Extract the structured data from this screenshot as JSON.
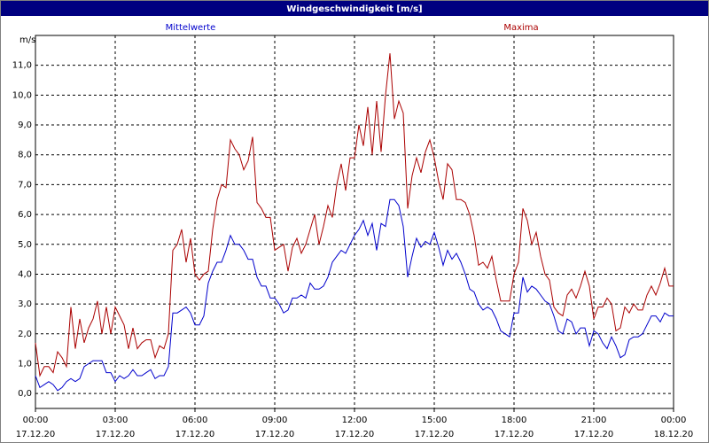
{
  "chart_data": {
    "type": "line",
    "title": "Windgeschwindigkeit [m/s]",
    "y_unit": "m/s",
    "x": [
      0,
      10,
      20,
      30,
      40,
      50,
      60,
      70,
      80,
      90,
      100,
      110,
      120,
      130,
      140,
      150,
      160,
      170,
      180,
      190,
      200,
      210,
      220,
      230,
      240,
      250,
      260,
      270,
      280,
      290,
      300,
      310,
      320,
      330,
      340,
      350,
      360,
      370,
      380,
      390,
      400,
      410,
      420,
      430,
      440,
      450,
      460,
      470,
      480,
      490,
      500,
      510,
      520,
      530,
      540,
      550,
      560,
      570,
      580,
      590,
      600,
      610,
      620,
      630,
      640,
      650,
      660,
      670,
      680,
      690,
      700,
      710,
      720,
      730,
      740,
      750,
      760,
      770,
      780,
      790,
      800,
      810,
      820,
      830,
      840,
      850,
      860,
      870,
      880,
      890,
      900,
      910,
      920,
      930,
      940,
      950,
      960,
      970,
      980,
      990,
      1000,
      1010,
      1020,
      1030,
      1040,
      1050,
      1060,
      1070,
      1080,
      1090,
      1100,
      1110,
      1120,
      1130,
      1140,
      1150,
      1160,
      1170,
      1180,
      1190,
      1200,
      1210,
      1220,
      1230,
      1240,
      1250,
      1260,
      1270,
      1280,
      1290,
      1300,
      1310,
      1320,
      1330,
      1340,
      1350,
      1360,
      1370,
      1380,
      1390,
      1400,
      1410,
      1420,
      1430,
      1440
    ],
    "series": [
      {
        "name": "Mittelwerte",
        "color": "#0000cc",
        "values": [
          0.6,
          0.2,
          0.3,
          0.4,
          0.3,
          0.1,
          0.2,
          0.4,
          0.5,
          0.4,
          0.5,
          0.9,
          1.0,
          1.1,
          1.1,
          1.1,
          0.7,
          0.7,
          0.4,
          0.6,
          0.5,
          0.6,
          0.8,
          0.6,
          0.6,
          0.7,
          0.8,
          0.5,
          0.6,
          0.6,
          0.9,
          2.7,
          2.7,
          2.8,
          2.9,
          2.7,
          2.3,
          2.3,
          2.6,
          3.7,
          4.1,
          4.4,
          4.4,
          4.8,
          5.3,
          5.0,
          5.0,
          4.8,
          4.5,
          4.5,
          3.9,
          3.6,
          3.6,
          3.2,
          3.2,
          3.0,
          2.7,
          2.8,
          3.2,
          3.2,
          3.3,
          3.2,
          3.7,
          3.5,
          3.5,
          3.6,
          3.9,
          4.4,
          4.6,
          4.8,
          4.7,
          5.0,
          5.3,
          5.5,
          5.8,
          5.3,
          5.7,
          4.8,
          5.7,
          5.6,
          6.5,
          6.5,
          6.3,
          5.6,
          3.9,
          4.6,
          5.2,
          4.9,
          5.1,
          5.0,
          5.4,
          4.9,
          4.3,
          4.8,
          4.5,
          4.7,
          4.4,
          4.0,
          3.5,
          3.4,
          3.0,
          2.8,
          2.9,
          2.8,
          2.5,
          2.1,
          2.0,
          1.9,
          2.7,
          2.7,
          3.9,
          3.4,
          3.6,
          3.5,
          3.3,
          3.1,
          3.0,
          2.6,
          2.1,
          2.0,
          2.5,
          2.4,
          2.0,
          2.2,
          2.2,
          1.6,
          2.1,
          2.0,
          1.7,
          1.5,
          1.9,
          1.6,
          1.2,
          1.3,
          1.8,
          1.9,
          1.9,
          2.0,
          2.3,
          2.6,
          2.6,
          2.4,
          2.7,
          2.6,
          2.6
        ]
      },
      {
        "name": "Maxima",
        "color": "#aa0000",
        "values": [
          1.7,
          0.6,
          0.9,
          0.9,
          0.7,
          1.4,
          1.2,
          0.9,
          2.9,
          1.5,
          2.5,
          1.7,
          2.2,
          2.5,
          3.1,
          2.0,
          2.9,
          2.0,
          2.9,
          2.6,
          2.3,
          1.5,
          2.2,
          1.5,
          1.7,
          1.8,
          1.8,
          1.2,
          1.6,
          1.5,
          2.0,
          4.8,
          5.0,
          5.5,
          4.4,
          5.2,
          4.0,
          3.8,
          4.0,
          4.1,
          5.5,
          6.5,
          7.0,
          6.9,
          8.5,
          8.2,
          8.0,
          7.5,
          7.8,
          8.6,
          6.4,
          6.2,
          5.9,
          5.9,
          4.8,
          4.9,
          5.0,
          4.1,
          4.9,
          5.2,
          4.7,
          5.0,
          5.5,
          6.0,
          5.0,
          5.6,
          6.3,
          5.9,
          7.0,
          7.7,
          6.8,
          7.9,
          7.9,
          9.0,
          8.3,
          9.6,
          8.0,
          9.8,
          8.1,
          10.0,
          11.4,
          9.2,
          9.8,
          9.4,
          6.2,
          7.3,
          7.9,
          7.4,
          8.1,
          8.5,
          7.9,
          7.1,
          6.5,
          7.7,
          7.5,
          6.5,
          6.5,
          6.4,
          6.0,
          5.3,
          4.3,
          4.4,
          4.2,
          4.6,
          3.8,
          3.1,
          3.1,
          3.1,
          4.0,
          4.4,
          6.2,
          5.8,
          5.0,
          5.4,
          4.6,
          4.0,
          3.8,
          2.9,
          2.7,
          2.6,
          3.3,
          3.5,
          3.2,
          3.6,
          4.1,
          3.6,
          2.5,
          2.9,
          2.9,
          3.2,
          3.0,
          2.1,
          2.2,
          2.9,
          2.7,
          3.0,
          2.8,
          2.8,
          3.3,
          3.6,
          3.3,
          3.7,
          4.2,
          3.6,
          3.6
        ]
      }
    ],
    "xlim": [
      0,
      1440
    ],
    "xticks": [
      {
        "value": 0,
        "label": "00:00"
      },
      {
        "value": 180,
        "label": "03:00"
      },
      {
        "value": 360,
        "label": "06:00"
      },
      {
        "value": 540,
        "label": "09:00"
      },
      {
        "value": 720,
        "label": "12:00"
      },
      {
        "value": 900,
        "label": "15:00"
      },
      {
        "value": 1080,
        "label": "18:00"
      },
      {
        "value": 1260,
        "label": "21:00"
      },
      {
        "value": 1440,
        "label": "00:00"
      }
    ],
    "xtick_dates": [
      "17.12.20",
      "17.12.20",
      "17.12.20",
      "17.12.20",
      "17.12.20",
      "17.12.20",
      "17.12.20",
      "17.12.20",
      "18.12.20"
    ],
    "ylim": [
      -0.5,
      12
    ],
    "yticks": [
      {
        "value": 0,
        "label": "0,0"
      },
      {
        "value": 1,
        "label": "1,0"
      },
      {
        "value": 2,
        "label": "2,0"
      },
      {
        "value": 3,
        "label": "3,0"
      },
      {
        "value": 4,
        "label": "4,0"
      },
      {
        "value": 5,
        "label": "5,0"
      },
      {
        "value": 6,
        "label": "6,0"
      },
      {
        "value": 7,
        "label": "7,0"
      },
      {
        "value": 8,
        "label": "8,0"
      },
      {
        "value": 9,
        "label": "9,0"
      },
      {
        "value": 10,
        "label": "10,0"
      },
      {
        "value": 11,
        "label": "11,0"
      }
    ],
    "grid": true
  }
}
